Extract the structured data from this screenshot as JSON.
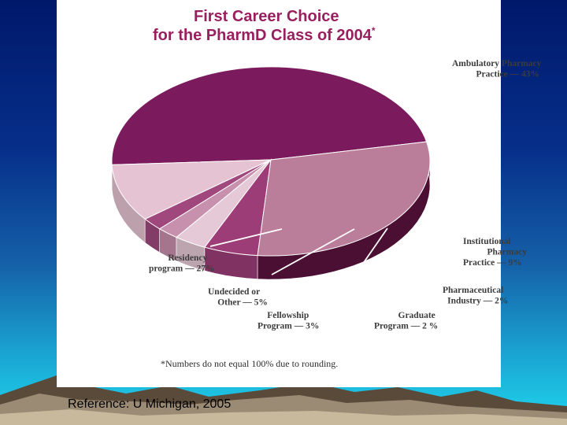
{
  "chart_data": {
    "type": "pie",
    "title_line1": "First Career Choice",
    "title_line2": "for the PharmD Class of 2004",
    "title_mark": "*",
    "slices": [
      {
        "label_lines": [
          "Ambulatory Pharmacy",
          "Practice — 43%"
        ],
        "value": 43,
        "color": "#7b1a5c"
      },
      {
        "label_lines": [
          "Institutional",
          "Pharmacy",
          "Practice — 9%"
        ],
        "value": 9,
        "color": "#e5c3d2"
      },
      {
        "label_lines": [
          "Pharmaceutical",
          "Industry — 2%"
        ],
        "value": 2,
        "color": "#a0487e"
      },
      {
        "label_lines": [
          "Graduate",
          "Program — 2 %"
        ],
        "value": 2,
        "color": "#c790ac"
      },
      {
        "label_lines": [
          "Fellowship",
          "Program — 3%"
        ],
        "value": 3,
        "color": "#e6c9d6"
      },
      {
        "label_lines": [
          "Undecided or",
          "Other — 5%"
        ],
        "value": 5,
        "color": "#9c3d78"
      },
      {
        "label_lines": [
          "Residency",
          "program — 27%"
        ],
        "value": 27,
        "color": "#bb7e9a"
      }
    ],
    "footnote": "*Numbers do not equal 100% due to rounding."
  },
  "slide": {
    "reference": "Reference: U Michigan, 2005"
  }
}
